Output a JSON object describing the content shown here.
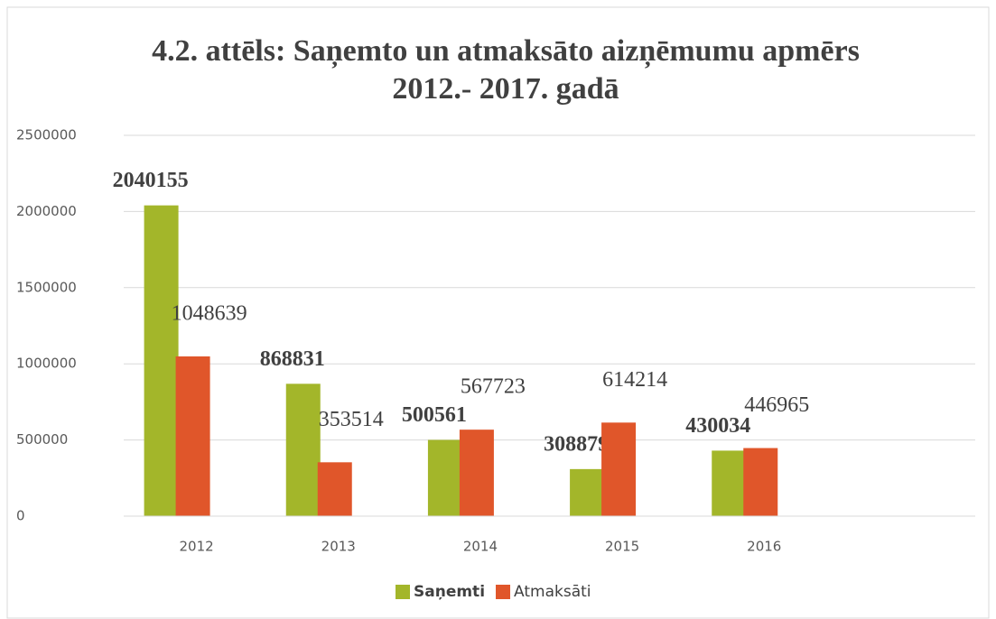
{
  "chart_data": {
    "type": "bar",
    "title": [
      "4.2. attēls: Saņemto un atmaksāto aizņēmumu apmērs",
      "2012.- 2017. gadā"
    ],
    "categories": [
      "2012",
      "2013",
      "2014",
      "2015",
      "2016",
      null
    ],
    "series": [
      {
        "name": "Saņemti",
        "color": "#a3b62a",
        "values": [
          2040155,
          868831,
          500561,
          308879,
          430034,
          null
        ]
      },
      {
        "name": "Atmaksāti",
        "color": "#e0562a",
        "values": [
          1048639,
          353514,
          567723,
          614214,
          446965,
          null
        ]
      }
    ],
    "ylim": [
      0,
      2500000
    ],
    "yticks": [
      0,
      500000,
      1000000,
      1500000,
      2000000,
      2500000
    ],
    "grid": true,
    "legend": "bottom"
  }
}
